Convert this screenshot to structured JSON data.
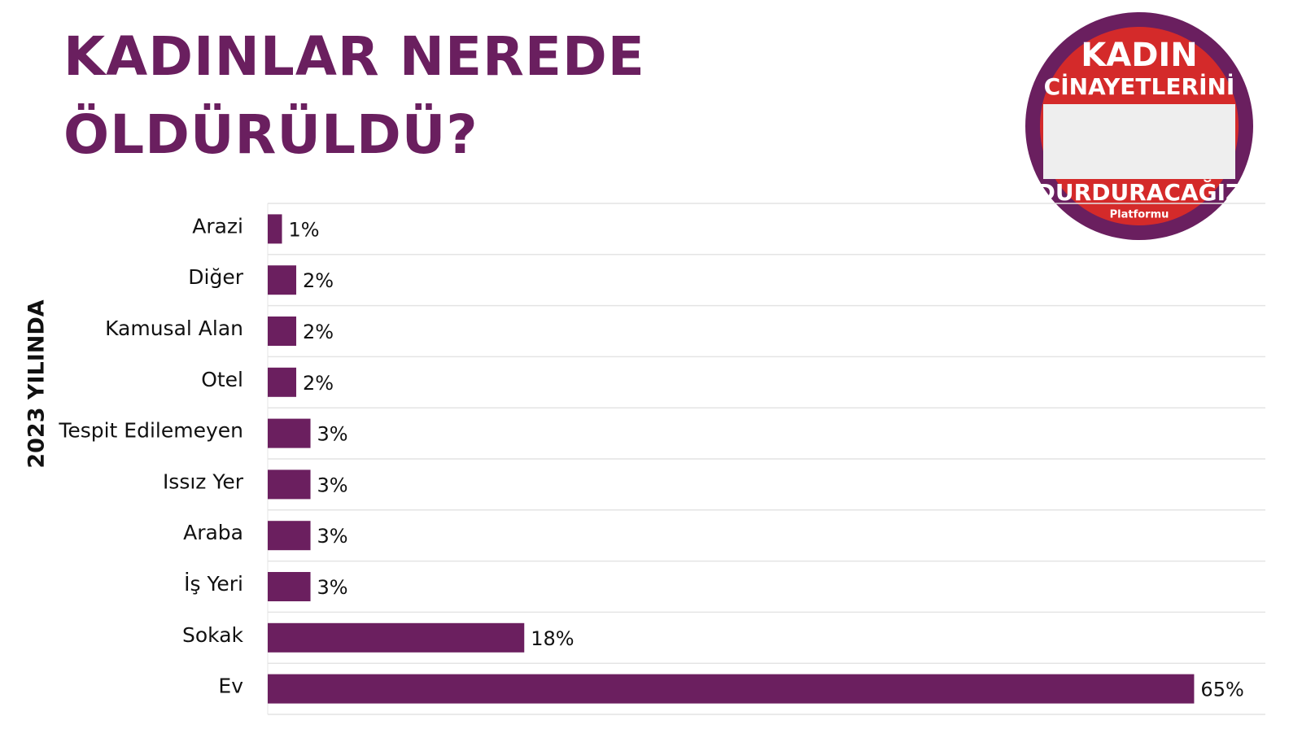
{
  "chart_data": {
    "type": "bar",
    "orientation": "horizontal",
    "title": "KADINLAR NEREDE ÖLDÜRÜLDÜ?",
    "y_label": "2023 YILINDA",
    "categories": [
      "Arazi",
      "Diğer",
      "Kamusal Alan",
      "Otel",
      "Tespit Edilemeyen",
      "Issız Yer",
      "Araba",
      "İş Yeri",
      "Sokak",
      "Ev"
    ],
    "values": [
      1,
      2,
      2,
      2,
      3,
      3,
      3,
      3,
      18,
      65
    ],
    "value_labels": [
      "1%",
      "2%",
      "2%",
      "2%",
      "3%",
      "3%",
      "3%",
      "3%",
      "18%",
      "65%"
    ],
    "color": "#6b1f5f",
    "xlim": [
      0,
      70
    ]
  },
  "logo": {
    "line1": "KADIN",
    "line2": "CİNAYETLERİNİ",
    "line3": "DURDURACAĞIZ",
    "line4": "Platformu"
  }
}
